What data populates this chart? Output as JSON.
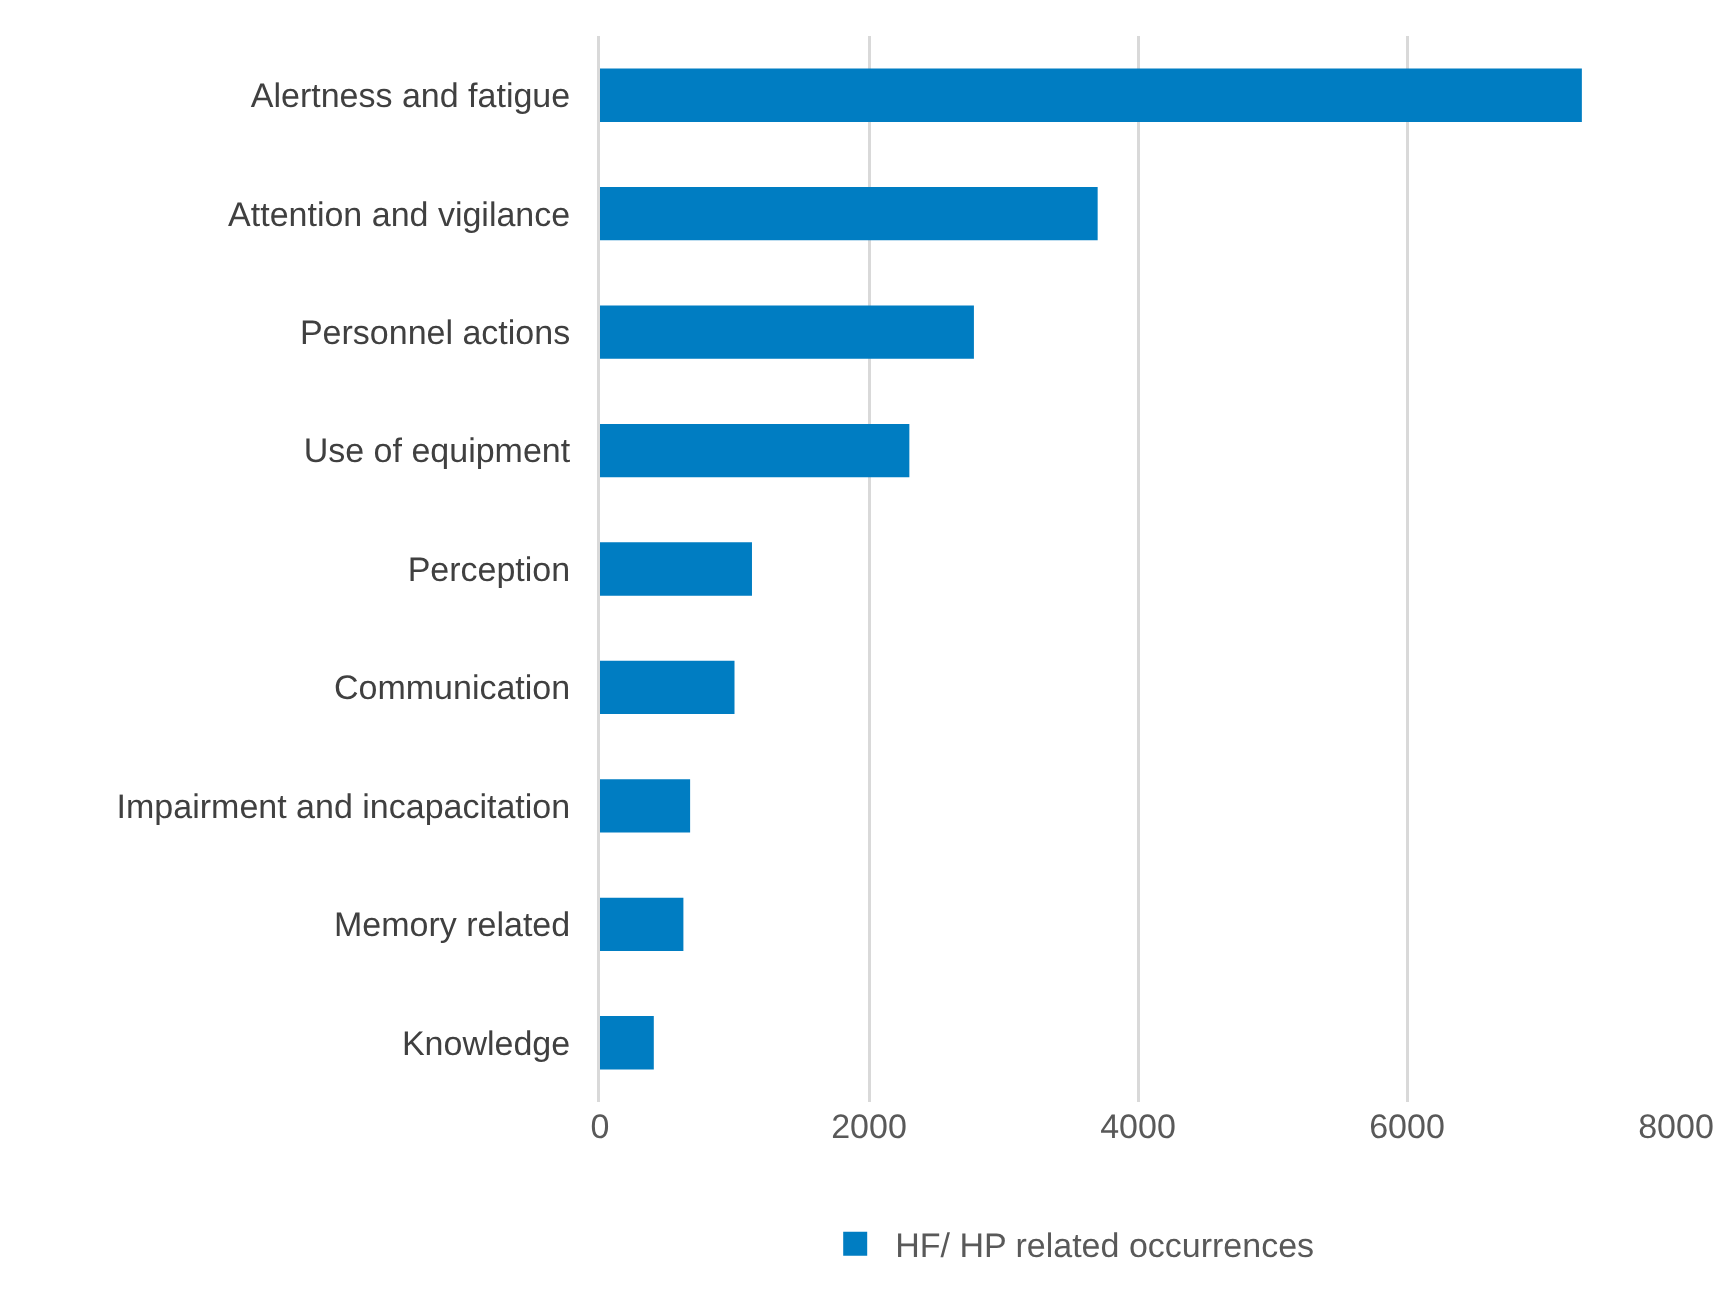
{
  "chart_data": {
    "type": "bar",
    "orientation": "horizontal",
    "categories": [
      "Alertness and fatigue",
      "Attention and vigilance",
      "Personnel actions",
      "Use of equipment",
      "Perception",
      "Communication",
      "Impairment and incapacitation",
      "Memory related",
      "Knowledge"
    ],
    "series": [
      {
        "name": "HF/ HP related occurrences",
        "color": "#007dc2",
        "values": [
          7300,
          3700,
          2780,
          2300,
          1130,
          1000,
          670,
          620,
          400
        ]
      }
    ],
    "xlim": [
      0,
      8000
    ],
    "xticks": [
      0,
      2000,
      4000,
      6000,
      8000
    ],
    "grid": "x",
    "legend": "bottom"
  }
}
